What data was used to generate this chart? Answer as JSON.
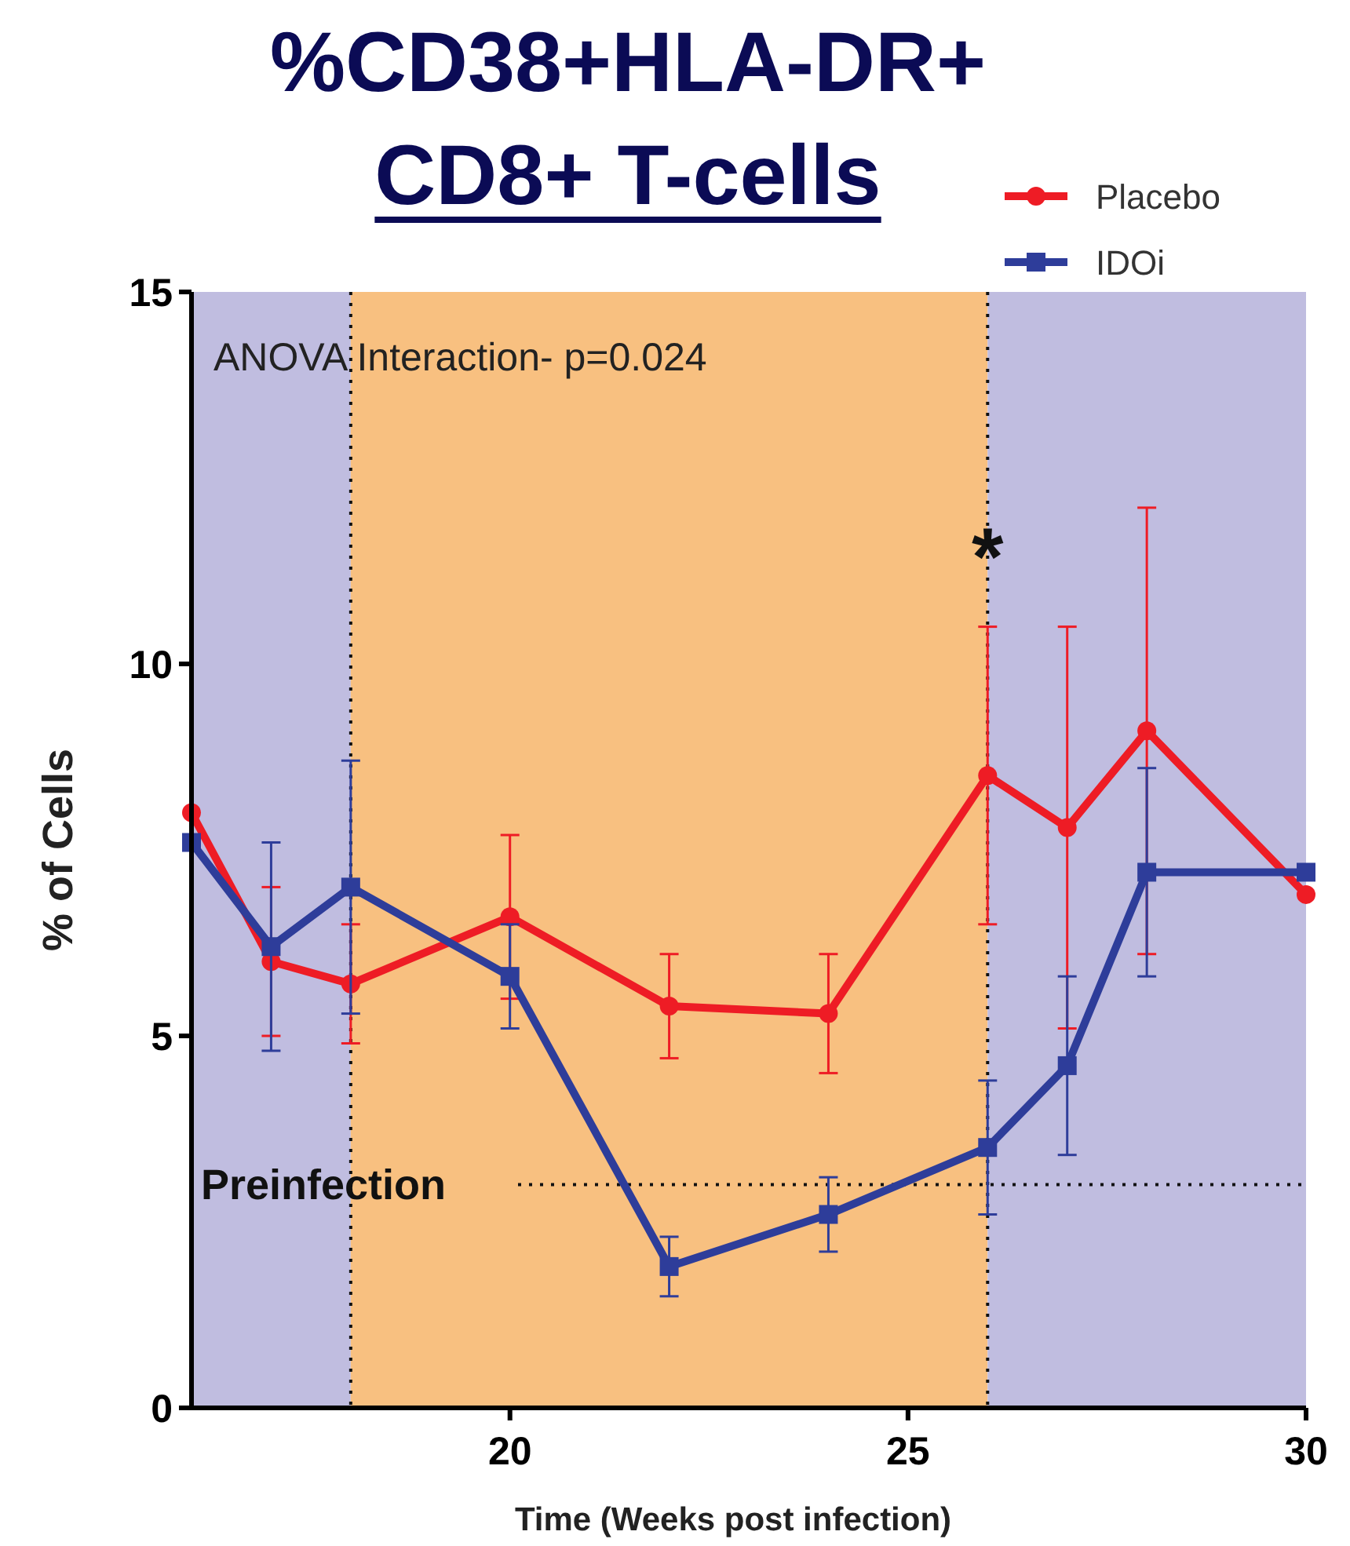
{
  "chart_data": {
    "type": "line",
    "title": "%CD38+HLA-DR+ CD8+ T-cells",
    "xlabel": "Time (Weeks post infection)",
    "ylabel": "% of Cells",
    "xlim": [
      16,
      30
    ],
    "xticks": [
      20,
      25,
      30
    ],
    "ylim": [
      0,
      15
    ],
    "yticks": [
      0,
      5,
      10,
      15
    ],
    "grid": false,
    "legend": "top right",
    "series": [
      {
        "name": "Placebo",
        "color": "#ee1c25",
        "marker": "circle",
        "x": [
          16,
          17,
          18,
          20,
          22,
          24,
          26,
          27,
          28,
          30
        ],
        "values": [
          8.0,
          6.0,
          5.7,
          6.6,
          5.4,
          5.3,
          8.5,
          7.8,
          9.1,
          6.9
        ],
        "errors": [
          null,
          1.0,
          0.8,
          1.1,
          0.7,
          0.8,
          2.0,
          2.7,
          3.0,
          null
        ]
      },
      {
        "name": "IDOi",
        "color": "#2e3d9a",
        "marker": "square",
        "x": [
          16,
          17,
          18,
          20,
          22,
          24,
          26,
          27,
          28,
          30
        ],
        "values": [
          7.6,
          6.2,
          7.0,
          5.8,
          1.9,
          2.6,
          3.5,
          4.6,
          7.2,
          7.2
        ],
        "errors": [
          null,
          1.4,
          1.7,
          0.7,
          0.4,
          0.5,
          0.9,
          1.2,
          1.4,
          null
        ]
      }
    ],
    "bands": [
      {
        "axis": "x",
        "from": 16,
        "to": 18,
        "color": "#c0bde0"
      },
      {
        "axis": "x",
        "from": 18,
        "to": 26,
        "color": "#f8c080"
      },
      {
        "axis": "x",
        "from": 26,
        "to": 30,
        "color": "#c0bde0"
      }
    ],
    "ref_lines": [
      {
        "axis": "x",
        "value": 18,
        "line_style": "dotted"
      },
      {
        "axis": "x",
        "value": 26,
        "line_style": "dotted"
      },
      {
        "axis": "y",
        "value": 3,
        "label": "Preinfection",
        "line_style": "dotted"
      }
    ],
    "annotations": [
      "ANOVA Interaction- p=0.024",
      {
        "text": "*",
        "x": 26,
        "y": 11.7
      }
    ]
  }
}
